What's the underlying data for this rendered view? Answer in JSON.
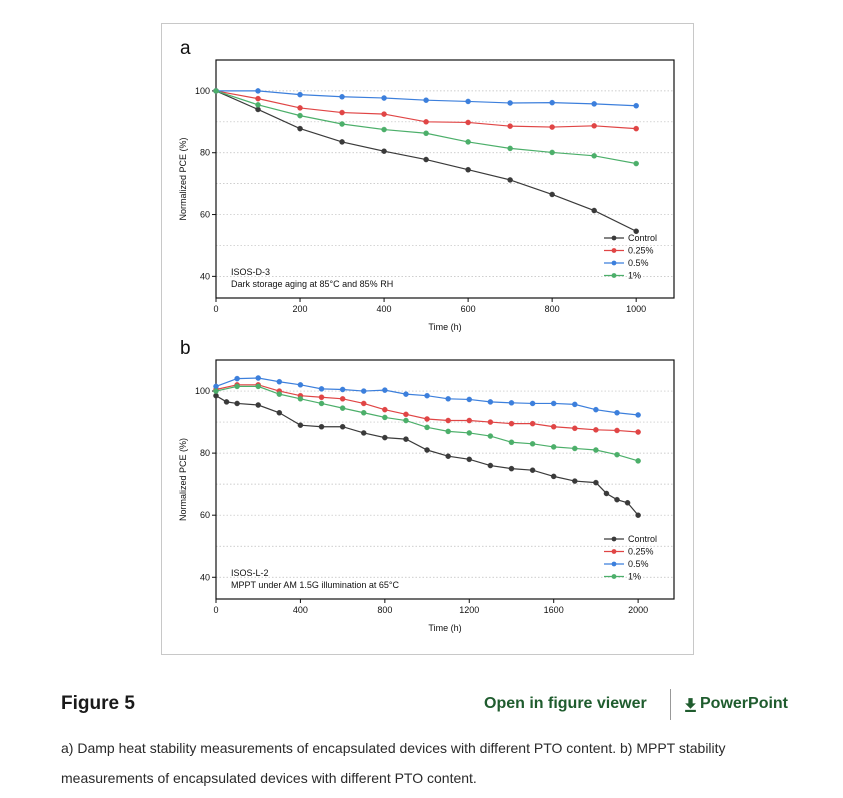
{
  "figure": {
    "title": "Figure 5",
    "viewer_link": "Open in figure viewer",
    "ppt_link": "PowerPoint",
    "caption": "a) Damp heat stability measurements of encapsulated devices with different PTO content. b) MPPT stability measurements of encapsulated devices with different PTO content."
  },
  "colors": {
    "Control": "#3a3a3a",
    "0.25%": "#e04545",
    "0.5%": "#3c7fdc",
    "1%": "#4caf6a",
    "grid": "#bdbdbd",
    "accent": "#1f5c2e"
  },
  "chart_data": [
    {
      "type": "line",
      "panel": "a",
      "xlabel": "Time (h)",
      "ylabel": "Normalized PCE (%)",
      "xlim": [
        0,
        1090
      ],
      "ylim": [
        33,
        110
      ],
      "xticks": [
        0,
        200,
        400,
        600,
        800,
        1000
      ],
      "yticks": [
        40,
        60,
        80,
        100
      ],
      "grid": "horizontal dotted",
      "annotation": [
        "ISOS-D-3",
        "Dark storage aging at 85°C and 85% RH"
      ],
      "legend_position": "lower-right",
      "series": [
        {
          "name": "Control",
          "x": [
            0,
            100,
            200,
            300,
            400,
            500,
            600,
            700,
            800,
            900,
            1000
          ],
          "y": [
            100,
            94,
            87.8,
            83.5,
            80.5,
            77.8,
            74.5,
            71.2,
            66.5,
            61.3,
            54.6
          ]
        },
        {
          "name": "0.25%",
          "x": [
            0,
            100,
            200,
            300,
            400,
            500,
            600,
            700,
            800,
            900,
            1000
          ],
          "y": [
            100,
            97.5,
            94.5,
            93,
            92.5,
            90,
            89.8,
            88.6,
            88.3,
            88.7,
            87.8
          ]
        },
        {
          "name": "0.5%",
          "x": [
            0,
            100,
            200,
            300,
            400,
            500,
            600,
            700,
            800,
            900,
            1000
          ],
          "y": [
            100,
            100,
            98.8,
            98.1,
            97.7,
            97,
            96.6,
            96.1,
            96.2,
            95.8,
            95.2
          ]
        },
        {
          "name": "1%",
          "x": [
            0,
            100,
            200,
            300,
            400,
            500,
            600,
            700,
            800,
            900,
            1000
          ],
          "y": [
            100,
            95.5,
            92,
            89.3,
            87.5,
            86.3,
            83.5,
            81.4,
            80.1,
            79,
            76.5
          ]
        }
      ]
    },
    {
      "type": "line",
      "panel": "b",
      "xlabel": "Time (h)",
      "ylabel": "Normalized PCE (%)",
      "xlim": [
        0,
        2170
      ],
      "ylim": [
        33,
        110
      ],
      "xticks": [
        0,
        400,
        800,
        1200,
        1600,
        2000
      ],
      "yticks": [
        40,
        60,
        80,
        100
      ],
      "grid": "horizontal dotted",
      "annotation": [
        "ISOS-L-2",
        "MPPT under AM 1.5G illumination at 65°C"
      ],
      "legend_position": "lower-right",
      "series": [
        {
          "name": "Control",
          "x": [
            0,
            50,
            100,
            200,
            300,
            400,
            500,
            600,
            700,
            800,
            900,
            1000,
            1100,
            1200,
            1300,
            1400,
            1500,
            1600,
            1700,
            1800,
            1850,
            1900,
            1950,
            2000
          ],
          "y": [
            98.5,
            96.5,
            96,
            95.5,
            93,
            89,
            88.5,
            88.5,
            86.5,
            85,
            84.5,
            81,
            79,
            78,
            76,
            75,
            74.5,
            72.5,
            71,
            70.5,
            67,
            65,
            64,
            60
          ]
        },
        {
          "name": "0.25%",
          "x": [
            0,
            100,
            200,
            300,
            400,
            500,
            600,
            700,
            800,
            900,
            1000,
            1100,
            1200,
            1300,
            1400,
            1500,
            1600,
            1700,
            1800,
            1900,
            2000
          ],
          "y": [
            100.5,
            102,
            102,
            100,
            98.5,
            98,
            97.5,
            96,
            94,
            92.5,
            91,
            90.5,
            90.5,
            90,
            89.5,
            89.5,
            88.5,
            88,
            87.5,
            87.3,
            86.8
          ]
        },
        {
          "name": "0.5%",
          "x": [
            0,
            100,
            200,
            300,
            400,
            500,
            600,
            700,
            800,
            900,
            1000,
            1100,
            1200,
            1300,
            1400,
            1500,
            1600,
            1700,
            1800,
            1900,
            2000
          ],
          "y": [
            101.5,
            104,
            104.2,
            103,
            102,
            100.7,
            100.5,
            100,
            100.3,
            99,
            98.5,
            97.5,
            97.3,
            96.5,
            96.2,
            96,
            96,
            95.7,
            94,
            93,
            92.3
          ]
        },
        {
          "name": "1%",
          "x": [
            0,
            100,
            200,
            300,
            400,
            500,
            600,
            700,
            800,
            900,
            1000,
            1100,
            1200,
            1300,
            1400,
            1500,
            1600,
            1700,
            1800,
            1900,
            2000
          ],
          "y": [
            100,
            101.5,
            101.5,
            99,
            97.5,
            96,
            94.5,
            93,
            91.5,
            90.5,
            88.3,
            87,
            86.5,
            85.5,
            83.5,
            83,
            82,
            81.5,
            81,
            79.5,
            77.5
          ]
        }
      ]
    }
  ]
}
